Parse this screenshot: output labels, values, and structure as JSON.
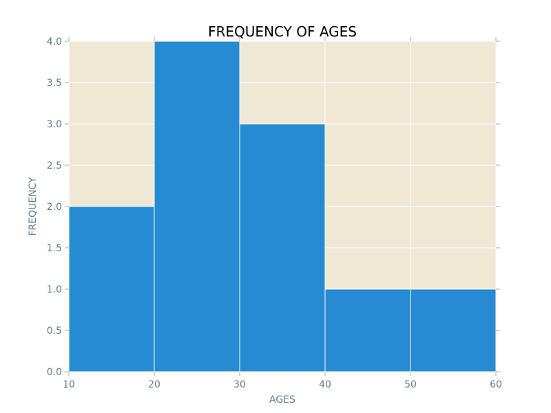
{
  "chart_data": {
    "type": "bar",
    "histogram": true,
    "title": "FREQUENCY OF AGES",
    "xlabel": "AGES",
    "ylabel": "FREQUENCY",
    "bins": [
      {
        "x0": 10,
        "x1": 20,
        "value": 2
      },
      {
        "x0": 20,
        "x1": 30,
        "value": 4
      },
      {
        "x0": 30,
        "x1": 40,
        "value": 3
      },
      {
        "x0": 40,
        "x1": 50,
        "value": 1
      },
      {
        "x0": 50,
        "x1": 60,
        "value": 1
      }
    ],
    "xlim": [
      10,
      60
    ],
    "ylim": [
      0,
      4
    ],
    "xticks": [
      10,
      20,
      30,
      40,
      50,
      60
    ],
    "xtick_labels": [
      "10",
      "20",
      "30",
      "40",
      "50",
      "60"
    ],
    "yticks": [
      0,
      0.5,
      1,
      1.5,
      2,
      2.5,
      3,
      3.5,
      4
    ],
    "ytick_labels": [
      "0.0",
      "0.5",
      "1.0",
      "1.5",
      "2.0",
      "2.5",
      "3.0",
      "3.5",
      "4.0"
    ],
    "grid": true,
    "legend": "none"
  },
  "colors": {
    "bar": "#268bd2",
    "bar_edge": "#ffffff",
    "plot_background": "#eee8d5",
    "grid": "#ffffff",
    "tick_text": "#657b83",
    "axis_line": "#aaaaaa"
  }
}
